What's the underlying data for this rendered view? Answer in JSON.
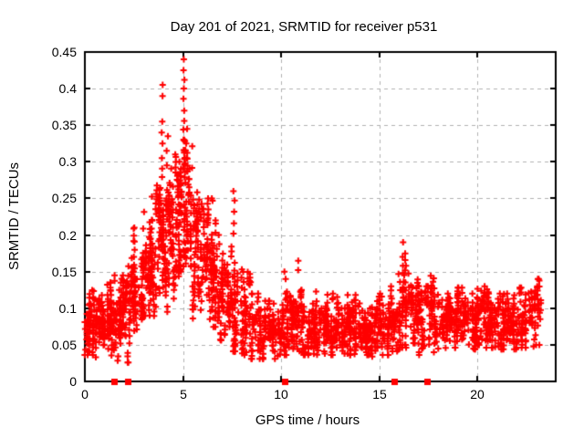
{
  "chart_data": {
    "type": "scatter",
    "title": "Day 201 of 2021, SRMTID for receiver p531",
    "xlabel": "GPS time / hours",
    "ylabel": "SRMTID / TECUs",
    "xlim": [
      0,
      24
    ],
    "ylim": [
      0,
      0.45
    ],
    "xticks": [
      0,
      5,
      10,
      15,
      20
    ],
    "xtick_labels": [
      "0",
      "5",
      "10",
      "15",
      "20"
    ],
    "yticks": [
      0,
      0.05,
      0.1,
      0.15,
      0.2,
      0.25,
      0.3,
      0.35,
      0.4,
      0.45
    ],
    "ytick_labels": [
      "0",
      "0.05",
      "0.1",
      "0.15",
      "0.2",
      "0.25",
      "0.3",
      "0.35",
      "0.4",
      "0.45"
    ],
    "grid": true,
    "legend": "none",
    "marker": "plus",
    "marker_color": "#ff0000",
    "grid_color": "#b0b0b0",
    "axis_color": "#000000",
    "seed": 42,
    "note_max_point": {
      "x": 5.05,
      "y": 0.44
    },
    "density_bins": [
      [
        0.0,
        0.5,
        70,
        0.04,
        0.07,
        0.125
      ],
      [
        0.5,
        1.0,
        60,
        0.035,
        0.072,
        0.12
      ],
      [
        1.0,
        1.5,
        60,
        0.03,
        0.078,
        0.135
      ],
      [
        1.5,
        2.0,
        62,
        0.025,
        0.082,
        0.145
      ],
      [
        2.0,
        2.5,
        62,
        0.03,
        0.1,
        0.17
      ],
      [
        2.5,
        3.0,
        65,
        0.05,
        0.12,
        0.21
      ],
      [
        3.0,
        3.5,
        70,
        0.07,
        0.155,
        0.26
      ],
      [
        3.5,
        4.0,
        72,
        0.08,
        0.185,
        0.295
      ],
      [
        4.0,
        4.5,
        75,
        0.09,
        0.2,
        0.3
      ],
      [
        4.5,
        5.0,
        75,
        0.1,
        0.21,
        0.31
      ],
      [
        5.0,
        5.5,
        75,
        0.1,
        0.22,
        0.33
      ],
      [
        5.5,
        6.0,
        70,
        0.09,
        0.19,
        0.285
      ],
      [
        6.0,
        6.5,
        65,
        0.07,
        0.16,
        0.25
      ],
      [
        6.5,
        7.0,
        60,
        0.06,
        0.13,
        0.22
      ],
      [
        7.0,
        7.5,
        55,
        0.05,
        0.11,
        0.195
      ],
      [
        7.5,
        8.0,
        55,
        0.045,
        0.1,
        0.185
      ],
      [
        8.0,
        8.5,
        50,
        0.04,
        0.08,
        0.155
      ],
      [
        8.5,
        9.0,
        46,
        0.035,
        0.07,
        0.12
      ],
      [
        9.0,
        9.5,
        45,
        0.035,
        0.065,
        0.11
      ],
      [
        9.5,
        10.0,
        45,
        0.035,
        0.065,
        0.12
      ],
      [
        10.0,
        10.5,
        50,
        0.04,
        0.07,
        0.15
      ],
      [
        10.5,
        11.0,
        50,
        0.04,
        0.075,
        0.155
      ],
      [
        11.0,
        11.5,
        50,
        0.04,
        0.07,
        0.125
      ],
      [
        11.5,
        12.0,
        50,
        0.04,
        0.07,
        0.13
      ],
      [
        12.0,
        12.5,
        50,
        0.04,
        0.068,
        0.12
      ],
      [
        12.5,
        13.0,
        50,
        0.04,
        0.07,
        0.12
      ],
      [
        13.0,
        13.5,
        50,
        0.04,
        0.07,
        0.128
      ],
      [
        13.5,
        14.0,
        50,
        0.04,
        0.068,
        0.12
      ],
      [
        14.0,
        14.5,
        50,
        0.04,
        0.068,
        0.118
      ],
      [
        14.5,
        15.0,
        48,
        0.038,
        0.065,
        0.11
      ],
      [
        15.0,
        15.5,
        48,
        0.04,
        0.065,
        0.12
      ],
      [
        15.5,
        16.0,
        50,
        0.045,
        0.08,
        0.155
      ],
      [
        16.0,
        16.5,
        52,
        0.05,
        0.09,
        0.175
      ],
      [
        16.5,
        17.0,
        50,
        0.05,
        0.085,
        0.155
      ],
      [
        17.0,
        17.5,
        48,
        0.04,
        0.075,
        0.13
      ],
      [
        17.5,
        18.0,
        48,
        0.04,
        0.075,
        0.145
      ],
      [
        18.0,
        18.5,
        48,
        0.045,
        0.075,
        0.12
      ],
      [
        18.5,
        19.0,
        48,
        0.05,
        0.08,
        0.13
      ],
      [
        19.0,
        19.5,
        48,
        0.05,
        0.08,
        0.128
      ],
      [
        19.5,
        20.0,
        48,
        0.048,
        0.075,
        0.12
      ],
      [
        20.0,
        20.5,
        50,
        0.05,
        0.08,
        0.13
      ],
      [
        20.5,
        21.0,
        50,
        0.05,
        0.08,
        0.122
      ],
      [
        21.0,
        21.5,
        50,
        0.048,
        0.075,
        0.12
      ],
      [
        21.5,
        22.0,
        50,
        0.048,
        0.075,
        0.12
      ],
      [
        22.0,
        22.5,
        50,
        0.05,
        0.08,
        0.128
      ],
      [
        22.5,
        23.25,
        55,
        0.05,
        0.085,
        0.14
      ]
    ],
    "outlier_columns": [
      [
        3.95,
        [
          0.405,
          0.39,
          0.355,
          0.34,
          0.325,
          0.305
        ]
      ],
      [
        4.2,
        [
          0.335,
          0.315,
          0.295
        ]
      ],
      [
        4.85,
        [
          0.3,
          0.285,
          0.27
        ]
      ],
      [
        5.05,
        [
          0.44,
          0.425,
          0.412,
          0.4,
          0.386,
          0.37,
          0.356,
          0.344,
          0.33,
          0.316
        ]
      ],
      [
        5.2,
        [
          0.345,
          0.325,
          0.305,
          0.287
        ]
      ],
      [
        7.6,
        [
          0.26,
          0.247,
          0.232,
          0.216,
          0.202
        ]
      ],
      [
        10.2,
        [
          0.15,
          0.14
        ]
      ],
      [
        10.9,
        [
          0.165,
          0.152
        ]
      ],
      [
        16.2,
        [
          0.19,
          0.17,
          0.158,
          0.148
        ]
      ],
      [
        23.05,
        [
          0.13,
          0.124,
          0.118
        ]
      ]
    ],
    "zero_value_square_markers_x": [
      1.48,
      2.18,
      10.2,
      15.78,
      17.45
    ]
  }
}
